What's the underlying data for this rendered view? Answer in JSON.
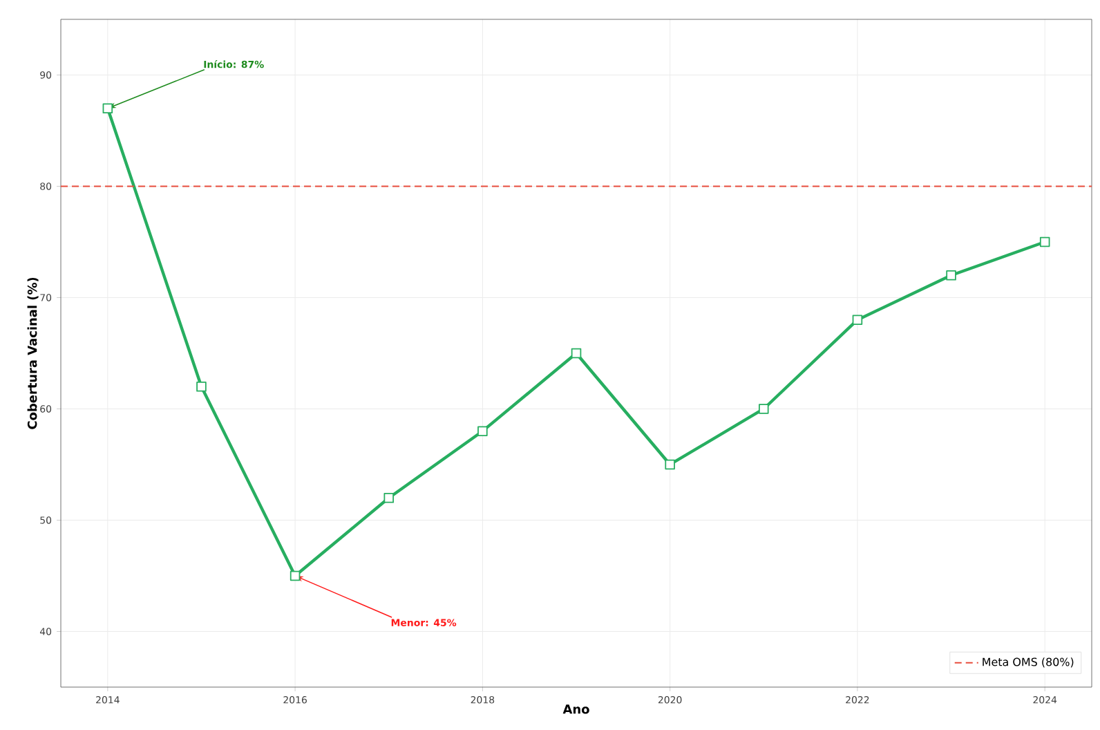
{
  "chart_data": {
    "type": "line",
    "xlabel": "Ano",
    "ylabel": "Cobertura Vacinal (%)",
    "x": [
      2014,
      2015,
      2016,
      2017,
      2018,
      2019,
      2020,
      2021,
      2022,
      2023,
      2024
    ],
    "series": [
      {
        "color": "#27ae60",
        "values": [
          87,
          62,
          45,
          52,
          58,
          65,
          55,
          60,
          68,
          72,
          75
        ]
      }
    ],
    "xlim": [
      2013.5,
      2024.5
    ],
    "xticks": [
      2014,
      2016,
      2018,
      2020,
      2022,
      2024
    ],
    "ylim": [
      35,
      95
    ],
    "yticks": [
      40,
      50,
      60,
      70,
      80,
      90
    ],
    "ref_lines": [
      {
        "axis": "y",
        "value": 80,
        "label": "Meta OMS (80%)",
        "color": "#e74c3c",
        "line_style": "dashed"
      }
    ],
    "annotations": [
      {
        "text": "Início: 87%",
        "x": 2014,
        "y": 87
      },
      {
        "text": "Menor: 45%",
        "x": 2016,
        "y": 45
      }
    ],
    "marker": "square",
    "line_style": "solid",
    "grid": true,
    "legend": "bottom right"
  }
}
